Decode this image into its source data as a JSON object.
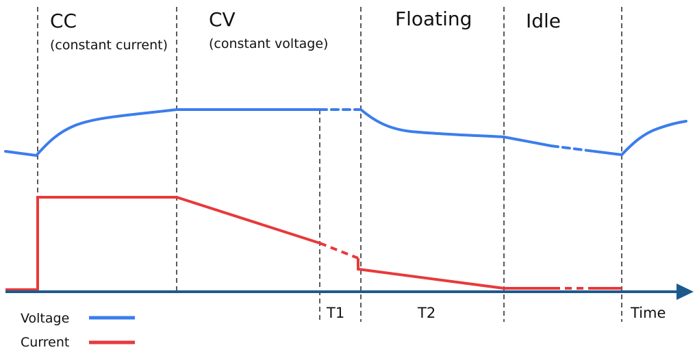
{
  "phases": [
    {
      "title": "CC",
      "subtitle": "(constant current)"
    },
    {
      "title": "CV",
      "subtitle": "(constant voltage)"
    },
    {
      "title": "Floating",
      "subtitle": ""
    },
    {
      "title": "Idle",
      "subtitle": ""
    }
  ],
  "axis": {
    "interval_labels": [
      "T1",
      "T2"
    ],
    "x_label": "Time"
  },
  "legend": [
    {
      "name": "Voltage",
      "color": "#3b7ded"
    },
    {
      "name": "Current",
      "color": "#e8393b"
    }
  ],
  "colors": {
    "voltage": "#3b7ded",
    "current": "#e8393b",
    "axis": "#1d5a8c",
    "divider": "#222222"
  }
}
